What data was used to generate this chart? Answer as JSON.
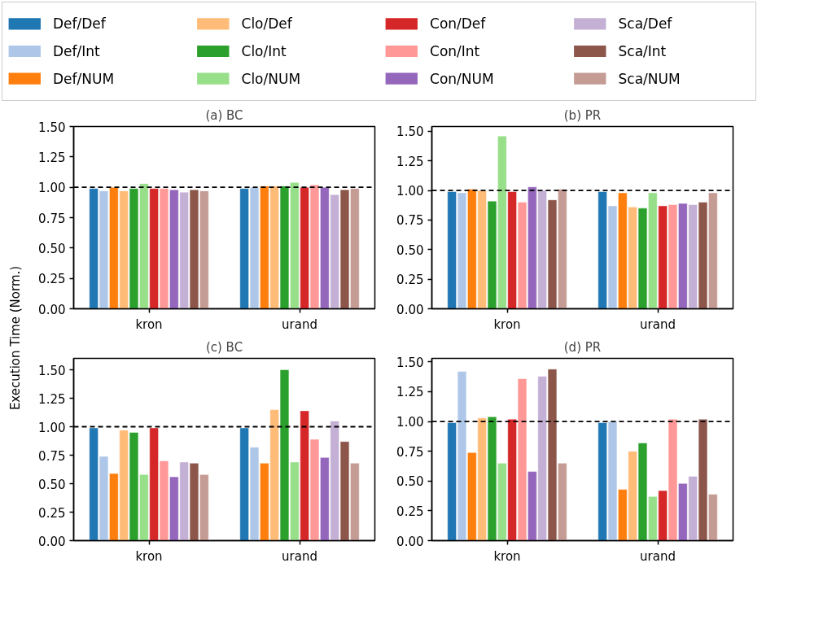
{
  "chart_data": [
    {
      "type": "bar",
      "title": "(a) BC",
      "ylabel": "Execution Time (Norm.)",
      "legend": "top",
      "categories": [
        "kron",
        "urand"
      ],
      "ylim": [
        0,
        1.5
      ],
      "yticks": [
        {
          "value": 0,
          "label": "0.00"
        },
        {
          "value": 0.25,
          "label": "0.25"
        },
        {
          "value": 0.5,
          "label": "0.50"
        },
        {
          "value": 0.75,
          "label": "0.75"
        },
        {
          "value": 1,
          "label": "1.00"
        },
        {
          "value": 1.25,
          "label": "1.25"
        },
        {
          "value": 1.5,
          "label": "1.50"
        }
      ],
      "ref_lines": [
        {
          "axis": "y",
          "value": 1,
          "color": "#000000",
          "line_style": "dashed"
        }
      ],
      "series": [
        {
          "name": "Def/Def",
          "color": "#1f77b4",
          "values": [
            0.99,
            0.99
          ]
        },
        {
          "name": "Def/Int",
          "color": "#aec7e8",
          "values": [
            0.97,
            1.0
          ]
        },
        {
          "name": "Def/NUM",
          "color": "#ff7f0e",
          "values": [
            1.0,
            1.01
          ]
        },
        {
          "name": "Clo/Def",
          "color": "#ffbb78",
          "values": [
            0.97,
            1.01
          ]
        },
        {
          "name": "Clo/Int",
          "color": "#2ca02c",
          "values": [
            0.99,
            1.01
          ]
        },
        {
          "name": "Clo/NUM",
          "color": "#98df8a",
          "values": [
            1.03,
            1.04
          ]
        },
        {
          "name": "Con/Def",
          "color": "#d62728",
          "values": [
            0.99,
            1.0
          ]
        },
        {
          "name": "Con/Int",
          "color": "#ff9896",
          "values": [
            0.99,
            1.02
          ]
        },
        {
          "name": "Con/NUM",
          "color": "#9467bd",
          "values": [
            0.98,
            1.0
          ]
        },
        {
          "name": "Sca/Def",
          "color": "#c5b0d5",
          "values": [
            0.96,
            0.94
          ]
        },
        {
          "name": "Sca/Int",
          "color": "#8c564b",
          "values": [
            0.98,
            0.98
          ]
        },
        {
          "name": "Sca/NUM",
          "color": "#c49c94",
          "values": [
            0.97,
            0.99
          ]
        }
      ]
    },
    {
      "type": "bar",
      "title": "(b) PR",
      "categories": [
        "kron",
        "urand"
      ],
      "ylim": [
        0,
        1.54
      ],
      "yticks": [
        {
          "value": 0,
          "label": "0.00"
        },
        {
          "value": 0.25,
          "label": "0.25"
        },
        {
          "value": 0.5,
          "label": "0.50"
        },
        {
          "value": 0.75,
          "label": "0.75"
        },
        {
          "value": 1,
          "label": "1.00"
        },
        {
          "value": 1.25,
          "label": "1.25"
        },
        {
          "value": 1.5,
          "label": "1.50"
        }
      ],
      "ref_lines": [
        {
          "axis": "y",
          "value": 1,
          "color": "#000000",
          "line_style": "dashed"
        }
      ],
      "series": [
        {
          "color": "#1f77b4",
          "values": [
            0.99,
            0.99
          ]
        },
        {
          "color": "#aec7e8",
          "values": [
            0.98,
            0.87
          ]
        },
        {
          "color": "#ff7f0e",
          "values": [
            1.01,
            0.98
          ]
        },
        {
          "color": "#ffbb78",
          "values": [
            1.0,
            0.86
          ]
        },
        {
          "color": "#2ca02c",
          "values": [
            0.91,
            0.85
          ]
        },
        {
          "color": "#98df8a",
          "values": [
            1.46,
            0.98
          ]
        },
        {
          "color": "#d62728",
          "values": [
            0.99,
            0.87
          ]
        },
        {
          "color": "#ff9896",
          "values": [
            0.9,
            0.88
          ]
        },
        {
          "color": "#9467bd",
          "values": [
            1.03,
            0.89
          ]
        },
        {
          "color": "#c5b0d5",
          "values": [
            1.0,
            0.88
          ]
        },
        {
          "color": "#8c564b",
          "values": [
            0.92,
            0.9
          ]
        },
        {
          "color": "#c49c94",
          "values": [
            1.01,
            0.98
          ]
        }
      ]
    },
    {
      "type": "bar",
      "title": "(c) BC",
      "categories": [
        "kron",
        "urand"
      ],
      "ylim": [
        0,
        1.6
      ],
      "yticks": [
        {
          "value": 0,
          "label": "0.00"
        },
        {
          "value": 0.25,
          "label": "0.25"
        },
        {
          "value": 0.5,
          "label": "0.50"
        },
        {
          "value": 0.75,
          "label": "0.75"
        },
        {
          "value": 1,
          "label": "1.00"
        },
        {
          "value": 1.25,
          "label": "1.25"
        },
        {
          "value": 1.5,
          "label": "1.50"
        }
      ],
      "ref_lines": [
        {
          "axis": "y",
          "value": 1,
          "color": "#000000",
          "line_style": "dashed"
        }
      ],
      "series": [
        {
          "color": "#1f77b4",
          "values": [
            0.99,
            0.99
          ]
        },
        {
          "color": "#aec7e8",
          "values": [
            0.74,
            0.82
          ]
        },
        {
          "color": "#ff7f0e",
          "values": [
            0.59,
            0.68
          ]
        },
        {
          "color": "#ffbb78",
          "values": [
            0.97,
            1.15
          ]
        },
        {
          "color": "#2ca02c",
          "values": [
            0.95,
            1.5
          ]
        },
        {
          "color": "#98df8a",
          "values": [
            0.58,
            0.69
          ]
        },
        {
          "color": "#d62728",
          "values": [
            0.99,
            1.14
          ]
        },
        {
          "color": "#ff9896",
          "values": [
            0.7,
            0.89
          ]
        },
        {
          "color": "#9467bd",
          "values": [
            0.56,
            0.73
          ]
        },
        {
          "color": "#c5b0d5",
          "values": [
            0.69,
            1.05
          ]
        },
        {
          "color": "#8c564b",
          "values": [
            0.68,
            0.87
          ]
        },
        {
          "color": "#c49c94",
          "values": [
            0.58,
            0.68
          ]
        }
      ]
    },
    {
      "type": "bar",
      "title": "(d) PR",
      "categories": [
        "kron",
        "urand"
      ],
      "ylim": [
        0,
        1.53
      ],
      "yticks": [
        {
          "value": 0,
          "label": "0.00"
        },
        {
          "value": 0.25,
          "label": "0.25"
        },
        {
          "value": 0.5,
          "label": "0.50"
        },
        {
          "value": 0.75,
          "label": "0.75"
        },
        {
          "value": 1,
          "label": "1.00"
        },
        {
          "value": 1.25,
          "label": "1.25"
        },
        {
          "value": 1.5,
          "label": "1.50"
        }
      ],
      "ref_lines": [
        {
          "axis": "y",
          "value": 1,
          "color": "#000000",
          "line_style": "dashed"
        }
      ],
      "series": [
        {
          "color": "#1f77b4",
          "values": [
            0.99,
            0.99
          ]
        },
        {
          "color": "#aec7e8",
          "values": [
            1.42,
            1.0
          ]
        },
        {
          "color": "#ff7f0e",
          "values": [
            0.74,
            0.43
          ]
        },
        {
          "color": "#ffbb78",
          "values": [
            1.03,
            0.75
          ]
        },
        {
          "color": "#2ca02c",
          "values": [
            1.04,
            0.82
          ]
        },
        {
          "color": "#98df8a",
          "values": [
            0.65,
            0.37
          ]
        },
        {
          "color": "#d62728",
          "values": [
            1.02,
            0.42
          ]
        },
        {
          "color": "#ff9896",
          "values": [
            1.36,
            1.02
          ]
        },
        {
          "color": "#9467bd",
          "values": [
            0.58,
            0.48
          ]
        },
        {
          "color": "#c5b0d5",
          "values": [
            1.38,
            0.54
          ]
        },
        {
          "color": "#8c564b",
          "values": [
            1.44,
            1.02
          ]
        },
        {
          "color": "#c49c94",
          "values": [
            0.65,
            0.39
          ]
        }
      ]
    }
  ]
}
